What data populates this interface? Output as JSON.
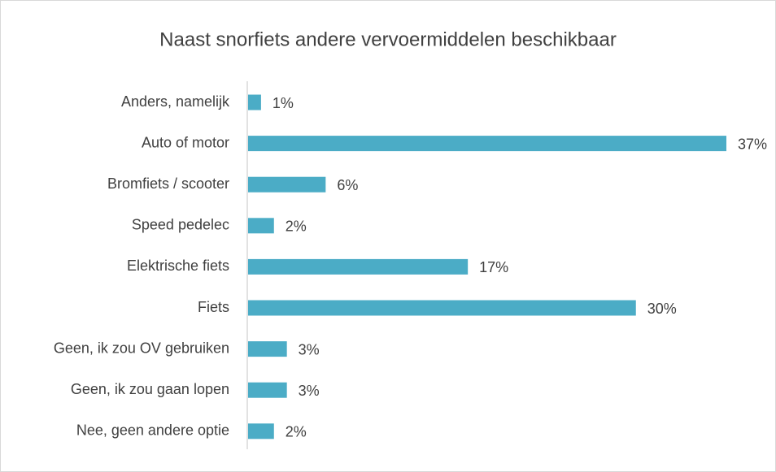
{
  "chart_data": {
    "type": "bar",
    "orientation": "horizontal",
    "title": "Naast snorfiets andere vervoermiddelen beschikbaar",
    "categories": [
      "Anders, namelijk",
      "Auto of motor",
      "Bromfiets / scooter",
      "Speed pedelec",
      "Elektrische fiets",
      "Fiets",
      "Geen, ik zou OV gebruiken",
      "Geen, ik zou gaan lopen",
      "Nee, geen andere optie"
    ],
    "values": [
      1,
      37,
      6,
      2,
      17,
      30,
      3,
      3,
      2
    ],
    "value_labels": [
      "1%",
      "37%",
      "6%",
      "2%",
      "17%",
      "30%",
      "3%",
      "3%",
      "2%"
    ],
    "color": "#4bacc6"
  }
}
